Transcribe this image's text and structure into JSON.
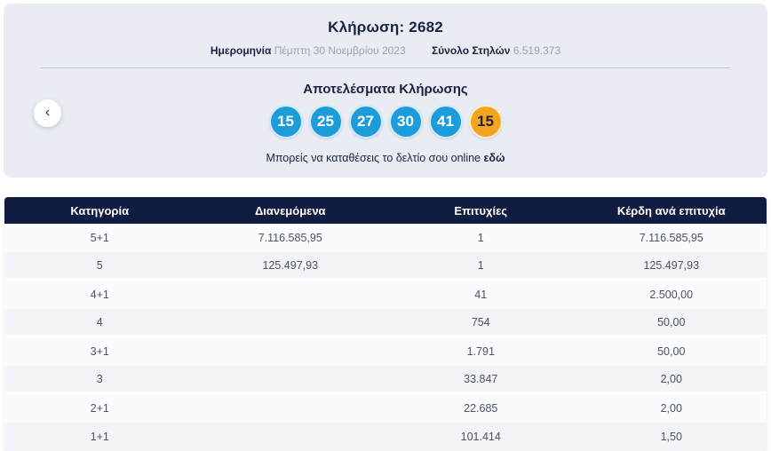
{
  "draw": {
    "title": "Κλήρωση: 2682",
    "date_label": "Ημερομηνία",
    "date_value": "Πέμπτη 30 Νοεμβρίου 2023",
    "columns_label": "Σύνολο Στηλών",
    "columns_value": "6.519.373",
    "results_title": "Αποτελέσματα Κλήρωσης",
    "numbers": [
      "15",
      "25",
      "27",
      "30",
      "41"
    ],
    "joker_number": "15",
    "cta_text": "Μπορείς να καταθέσεις το δελτίο σου online",
    "cta_link_label": "εδώ"
  },
  "icons": {
    "prev": "‹"
  },
  "colors": {
    "card_background": "#e9ecf3",
    "table_header_navy": "#111c41",
    "ball_blue": "#1d9cda",
    "ball_orange": "#f3a51d"
  },
  "table": {
    "headers": [
      "Κατηγορία",
      "Διανεμόμενα",
      "Επιτυχίες",
      "Κέρδη ανά επιτυχία"
    ],
    "rows": [
      [
        "5+1",
        "7.116.585,95",
        "1",
        "7.116.585,95"
      ],
      [
        "5",
        "125.497,93",
        "1",
        "125.497,93"
      ],
      [
        "4+1",
        "",
        "41",
        "2.500,00"
      ],
      [
        "4",
        "",
        "754",
        "50,00"
      ],
      [
        "3+1",
        "",
        "1.791",
        "50,00"
      ],
      [
        "3",
        "",
        "33.847",
        "2,00"
      ],
      [
        "2+1",
        "",
        "22.685",
        "2,00"
      ],
      [
        "1+1",
        "",
        "101.414",
        "1,50"
      ]
    ]
  }
}
